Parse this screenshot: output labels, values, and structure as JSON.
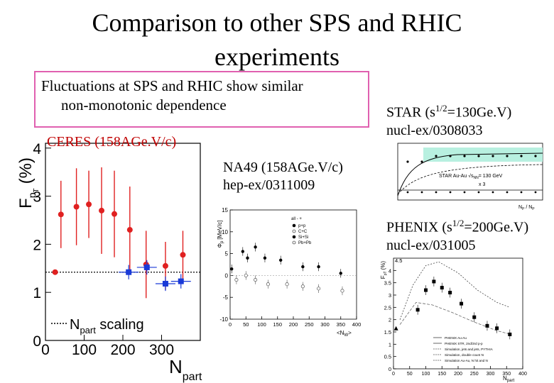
{
  "title_line1": "Comparison to other SPS and RHIC",
  "title_line2": "experiments",
  "callout": {
    "line1": "Fluctuations at SPS and RHIC show similar",
    "line2": "non-monotonic dependence"
  },
  "labels": {
    "ceres": "CERES (158AGe.V/c)",
    "na49_1": "NA49 (158AGe.V/c)",
    "na49_2": "hep-ex/0311009",
    "star_1": "STAR (s",
    "star_exp": "1/2",
    "star_1b": "=130Ge.V)",
    "star_2": "nucl-ex/0308033",
    "phenix_1": "PHENIX (s",
    "phenix_exp": "1/2",
    "phenix_1b": "=200Ge.V)",
    "phenix_2": "nucl-ex/031005"
  },
  "colors": {
    "red": "#e02020",
    "blue": "#1a3ad8",
    "callout_border": "#e060b0",
    "label_red": "#c00000"
  },
  "chart_data": [
    {
      "type": "scatter",
      "ylabel_main": "F",
      "ylabel_sub": "p",
      "ylabel_subsub": "T",
      "ylabel_unit": "(%)",
      "xlabel_main": "N",
      "xlabel_sub": "part",
      "xlim": [
        0,
        400
      ],
      "ylim": [
        0,
        4.1
      ],
      "xticks": [
        "0",
        "100",
        "200",
        "300"
      ],
      "yticks": [
        "0",
        "1",
        "2",
        "3",
        "4"
      ],
      "legend": {
        "main": "N",
        "sub": "part",
        "rest": " scaling"
      },
      "scaling_level": 1.42,
      "series": [
        {
          "color": "red",
          "points": [
            [
              25,
              1.42
            ],
            [
              40,
              2.62
            ],
            [
              80,
              2.78
            ],
            [
              112,
              2.83
            ],
            [
              145,
              2.7
            ],
            [
              178,
              2.63
            ],
            [
              218,
              2.3
            ],
            [
              260,
              1.58
            ],
            [
              310,
              1.55
            ],
            [
              355,
              1.78
            ]
          ]
        },
        {
          "color": "blue",
          "points": [
            [
              215,
              1.42
            ],
            [
              262,
              1.52
            ],
            [
              310,
              1.18
            ],
            [
              350,
              1.23
            ]
          ]
        }
      ]
    },
    {
      "type": "scatter",
      "ylabel": "Φ",
      "ylabel_sub": "p",
      "ylabel_unit": "[MeV/c]",
      "xlabel": "<N",
      "xlabel_sub": "W",
      "xlabel_end": ">",
      "xlim": [
        0,
        400
      ],
      "ylim": [
        -10,
        15
      ],
      "xticks": [
        "0",
        "50",
        "100",
        "150",
        "200",
        "250",
        "300",
        "350",
        "400"
      ],
      "yticks": [
        "-10",
        "-5",
        "0",
        "5",
        "10",
        "15"
      ],
      "legend_title": "all - +",
      "legend": [
        "p+p",
        "C+C",
        "Si+Si",
        "Pb+Pb"
      ],
      "series": [
        {
          "name": "all",
          "points": [
            [
              5,
              1.5
            ],
            [
              40,
              5.5
            ],
            [
              55,
              4
            ],
            [
              80,
              6.5
            ],
            [
              110,
              4
            ],
            [
              160,
              3.5
            ],
            [
              230,
              2
            ],
            [
              280,
              2
            ],
            [
              350,
              0.5
            ]
          ]
        },
        {
          "name": "open",
          "points": [
            [
              20,
              -1
            ],
            [
              50,
              0
            ],
            [
              80,
              -1
            ],
            [
              120,
              -2
            ],
            [
              180,
              -2
            ],
            [
              230,
              -2.5
            ],
            [
              280,
              -3
            ],
            [
              355,
              -3.5
            ]
          ]
        }
      ]
    },
    {
      "type": "line",
      "text_star": "STAR Au-Au √s",
      "text_star_sub": "NN",
      "text_star_rest": "= 130 GeV",
      "text_scale": "x 3",
      "xlabel": "N",
      "xlabel_sub": "P",
      "xlabel_rest": " / N",
      "xlabel_sub2": "P"
    },
    {
      "type": "line",
      "ylabel": "F",
      "ylabel_sub": "pT",
      "ylabel_unit": "(%)",
      "xlabel": "N",
      "xlabel_sub": "part",
      "xlim": [
        0,
        400
      ],
      "ylim": [
        0,
        4.5
      ],
      "xticks": [
        "0",
        "50",
        "100",
        "150",
        "200",
        "250",
        "300",
        "350",
        "400"
      ],
      "yticks": [
        "0",
        "0.5",
        "1",
        "1.5",
        "2",
        "2.5",
        "3",
        "3.5",
        "4"
      ],
      "top_tick": "4.5",
      "legend": [
        "PHENIX Au-Au",
        "PHENIX STR, 2nd/3rd p-p",
        "Simulation, jets and jets, PYTHIA",
        "Simulation, double count N",
        "Simulation Au-Au, N hit and N"
      ],
      "points": [
        [
          75,
          2.4
        ],
        [
          100,
          3.2
        ],
        [
          125,
          3.55
        ],
        [
          150,
          3.3
        ],
        [
          175,
          3.1
        ],
        [
          210,
          2.65
        ],
        [
          250,
          2.1
        ],
        [
          290,
          1.75
        ],
        [
          320,
          1.65
        ],
        [
          360,
          1.4
        ]
      ],
      "points2": [
        [
          8,
          1.65
        ]
      ],
      "curve_dashed": [
        [
          20,
          2.0
        ],
        [
          60,
          3.4
        ],
        [
          100,
          4.2
        ],
        [
          140,
          4.35
        ],
        [
          200,
          3.9
        ],
        [
          260,
          3.2
        ],
        [
          320,
          2.7
        ],
        [
          360,
          2.5
        ]
      ],
      "curve_lower": [
        [
          20,
          1.8
        ],
        [
          70,
          2.7
        ],
        [
          120,
          2.6
        ],
        [
          180,
          2.3
        ],
        [
          250,
          1.9
        ],
        [
          320,
          1.55
        ],
        [
          365,
          1.4
        ]
      ]
    }
  ]
}
